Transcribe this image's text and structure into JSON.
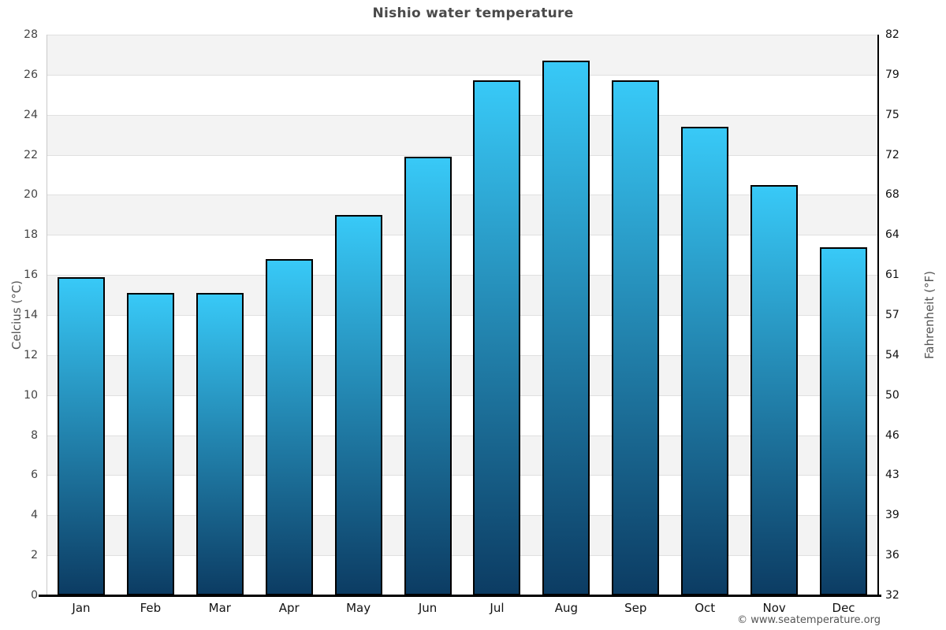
{
  "title": "Nishio water temperature",
  "footer": "© www.seatemperature.org",
  "axes": {
    "left_title": "Celcius (°C)",
    "right_title": "Fahrenheit (°F)",
    "left_tick_values": [
      28,
      26,
      24,
      22,
      20,
      18,
      16,
      14,
      12,
      10,
      8,
      6,
      4,
      2,
      0
    ],
    "right_tick_labels": [
      "82",
      "79",
      "75",
      "72",
      "68",
      "64",
      "61",
      "57",
      "54",
      "50",
      "46",
      "43",
      "39",
      "36",
      "32"
    ]
  },
  "chart_data": {
    "type": "bar",
    "title": "Nishio water temperature",
    "categories": [
      "Jan",
      "Feb",
      "Mar",
      "Apr",
      "May",
      "Jun",
      "Jul",
      "Aug",
      "Sep",
      "Oct",
      "Nov",
      "Dec"
    ],
    "values": [
      15.9,
      15.1,
      15.1,
      16.8,
      19.0,
      21.9,
      25.7,
      26.7,
      25.7,
      23.4,
      20.5,
      17.4
    ],
    "xlabel": "",
    "ylabel": "Celcius (°C)",
    "y2label": "Fahrenheit (°F)",
    "ylim": [
      0,
      28
    ],
    "y_tick_step": 2,
    "grid": "horizontal alternating bands every 2°C, gray band at 26-28",
    "legend": "none",
    "bar_gradient_top": "#38c9f7",
    "bar_gradient_bottom": "#0c3c63",
    "bar_border_color": "#000000"
  }
}
